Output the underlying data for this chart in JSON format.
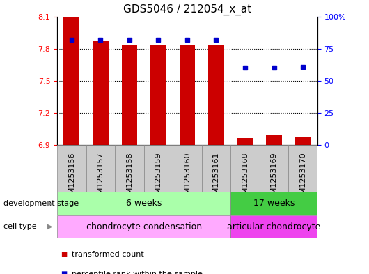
{
  "title": "GDS5046 / 212054_x_at",
  "samples": [
    "GSM1253156",
    "GSM1253157",
    "GSM1253158",
    "GSM1253159",
    "GSM1253160",
    "GSM1253161",
    "GSM1253168",
    "GSM1253169",
    "GSM1253170"
  ],
  "bar_values": [
    8.1,
    7.87,
    7.84,
    7.83,
    7.84,
    7.84,
    6.97,
    6.99,
    6.98
  ],
  "bar_base": 6.9,
  "percentile_values": [
    82,
    82,
    82,
    82,
    82,
    82,
    60,
    60,
    61
  ],
  "ylim_left": [
    6.9,
    8.1
  ],
  "ylim_right": [
    0,
    100
  ],
  "yticks_left": [
    6.9,
    7.2,
    7.5,
    7.8,
    8.1
  ],
  "yticks_right": [
    0,
    25,
    50,
    75,
    100
  ],
  "bar_color": "#cc0000",
  "percentile_color": "#0000cc",
  "bg_color": "#ffffff",
  "plot_bg": "#ffffff",
  "sample_box_color": "#cccccc",
  "sample_box_edge": "#888888",
  "development_stage_groups": [
    {
      "label": "6 weeks",
      "start": 0,
      "end": 5,
      "color": "#aaffaa"
    },
    {
      "label": "17 weeks",
      "start": 6,
      "end": 8,
      "color": "#44cc44"
    }
  ],
  "cell_type_groups": [
    {
      "label": "chondrocyte condensation",
      "start": 0,
      "end": 5,
      "color": "#ffaaff"
    },
    {
      "label": "articular chondrocyte",
      "start": 6,
      "end": 8,
      "color": "#ee44ee"
    }
  ],
  "legend_items": [
    {
      "label": "transformed count",
      "color": "#cc0000"
    },
    {
      "label": "percentile rank within the sample",
      "color": "#0000cc"
    }
  ],
  "left_label": "development stage",
  "cell_label": "cell type",
  "title_fontsize": 11,
  "tick_fontsize": 8,
  "label_fontsize": 8,
  "annot_fontsize": 9,
  "bar_width": 0.55
}
